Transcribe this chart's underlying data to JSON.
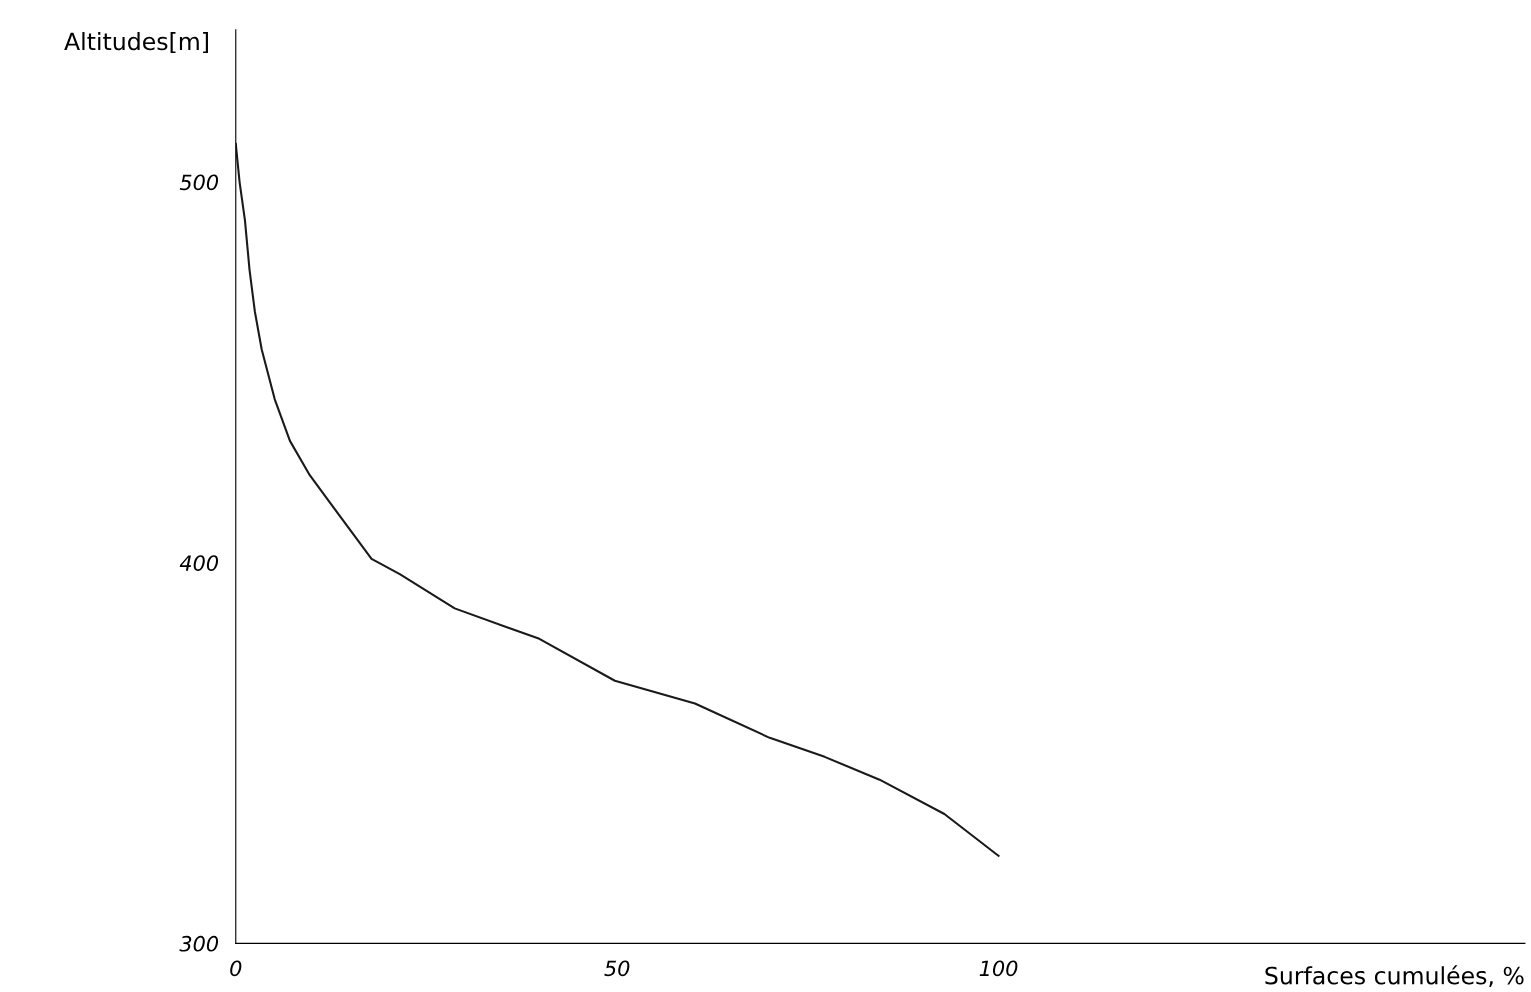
{
  "chart_data": {
    "type": "line",
    "xlabel": "Surfaces cumulées, %",
    "ylabel": "Altitudes[m]",
    "x": [
      0,
      0.5,
      1.2,
      1.8,
      2.5,
      3.4,
      5.1,
      7.1,
      9.7,
      13,
      17.8,
      21.5,
      28.7,
      39.8,
      49.7,
      60.2,
      70,
      77.2,
      84.4,
      92.9,
      100
    ],
    "series": [
      {
        "color": "#1a1a1a",
        "values": [
          510,
          500,
          490,
          477,
          466,
          456,
          443,
          432,
          423,
          414,
          401,
          397,
          388,
          380,
          369,
          363,
          354,
          349,
          343,
          334,
          323
        ]
      }
    ],
    "xlim": [
      0,
      169
    ],
    "ylim": [
      300,
      540
    ],
    "xticks": [
      0,
      50,
      100
    ],
    "yticks": [
      300,
      400,
      500
    ],
    "grid": false,
    "legend": false,
    "marker": "none",
    "line_style": "solid"
  }
}
